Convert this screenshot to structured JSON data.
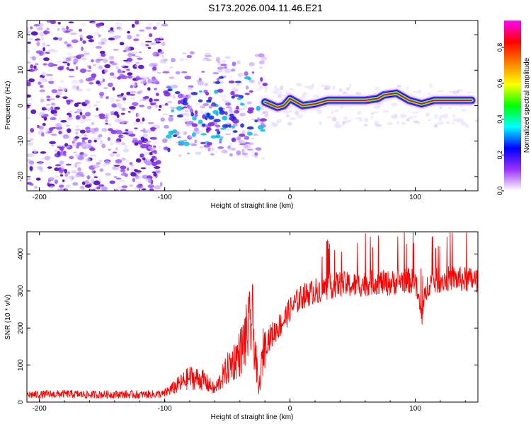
{
  "title": "S173.2026.004.11.46.E21",
  "colors": {
    "snr_line": "#ff0000",
    "frame": "#000000",
    "colorbar": [
      "#ffffff",
      "#9b30ff",
      "#0000ff",
      "#00ffff",
      "#00ff00",
      "#ffff00",
      "#ff8000",
      "#ff0000",
      "#ff00ff"
    ]
  },
  "chart_data": [
    {
      "type": "heatmap",
      "name": "spectrogram",
      "xlabel": "Height of straight line (km)",
      "ylabel": "Frequency (Hz)",
      "xlim": [
        -210,
        150
      ],
      "ylim": [
        -24,
        24
      ],
      "xticks": [
        -200,
        -100,
        0,
        100
      ],
      "xtick_labels": [
        "-200",
        "-100",
        "0",
        "100"
      ],
      "yticks": [
        20,
        10,
        0,
        -10,
        -20
      ],
      "ytick_labels": [
        "20",
        "10",
        "0",
        "-10",
        "-20"
      ],
      "colorbar": {
        "label": "Normalized spectral amplitude",
        "range": [
          0,
          0.95
        ],
        "ticks": [
          0.0,
          0.2,
          0.4,
          0.6,
          0.8
        ],
        "tick_labels": [
          "0.0",
          "0.2",
          "0.4",
          "0.6",
          "0.8"
        ]
      },
      "ridge_points": [
        {
          "x": -20,
          "y": 1
        },
        {
          "x": -10,
          "y": -0.5
        },
        {
          "x": -5,
          "y": 0
        },
        {
          "x": 0,
          "y": 2
        },
        {
          "x": 10,
          "y": 0
        },
        {
          "x": 20,
          "y": 0.5
        },
        {
          "x": 30,
          "y": 1.5
        },
        {
          "x": 40,
          "y": 1.5
        },
        {
          "x": 50,
          "y": 1.5
        },
        {
          "x": 60,
          "y": 1.5
        },
        {
          "x": 70,
          "y": 2
        },
        {
          "x": 75,
          "y": 3
        },
        {
          "x": 85,
          "y": 3.5
        },
        {
          "x": 95,
          "y": 1.5
        },
        {
          "x": 105,
          "y": 0.5
        },
        {
          "x": 115,
          "y": 1.5
        },
        {
          "x": 125,
          "y": 1.5
        },
        {
          "x": 135,
          "y": 1.5
        },
        {
          "x": 145,
          "y": 1.5
        }
      ]
    },
    {
      "type": "line",
      "name": "snr",
      "xlabel": "Height of straight line (km)",
      "ylabel": "SNR (10 * v/v)",
      "xlim": [
        -210,
        150
      ],
      "ylim": [
        0,
        460
      ],
      "xticks": [
        -200,
        -100,
        0,
        100
      ],
      "xtick_labels": [
        "-200",
        "-100",
        "0",
        "100"
      ],
      "yticks": [
        0,
        100,
        200,
        300,
        400
      ],
      "ytick_labels": [
        "0",
        "100",
        "200",
        "300",
        "400"
      ],
      "series": [
        {
          "name": "SNR",
          "x": [
            -210,
            -200,
            -180,
            -160,
            -140,
            -120,
            -100,
            -90,
            -80,
            -70,
            -60,
            -50,
            -40,
            -35,
            -30,
            -25,
            -20,
            -15,
            -10,
            -5,
            0,
            5,
            10,
            20,
            30,
            40,
            50,
            60,
            70,
            80,
            90,
            100,
            105,
            110,
            120,
            130,
            140,
            150
          ],
          "values": [
            20,
            20,
            22,
            20,
            21,
            20,
            22,
            40,
            60,
            55,
            30,
            80,
            120,
            160,
            200,
            25,
            160,
            180,
            200,
            220,
            250,
            270,
            285,
            300,
            310,
            320,
            315,
            320,
            325,
            320,
            330,
            325,
            230,
            320,
            330,
            335,
            330,
            330
          ]
        }
      ]
    }
  ]
}
